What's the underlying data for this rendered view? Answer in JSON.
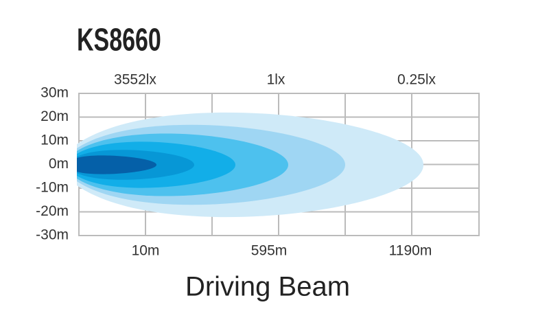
{
  "header": {
    "title": "KS8660"
  },
  "top_labels": [
    "3552lx",
    "1lx",
    "0.25lx"
  ],
  "y_labels": [
    "30m",
    "20m",
    "10m",
    "0m",
    "-10m",
    "-20m",
    "-30m"
  ],
  "bottom_labels": [
    "10m",
    "595m",
    "1190m"
  ],
  "caption": "Driving Beam"
}
